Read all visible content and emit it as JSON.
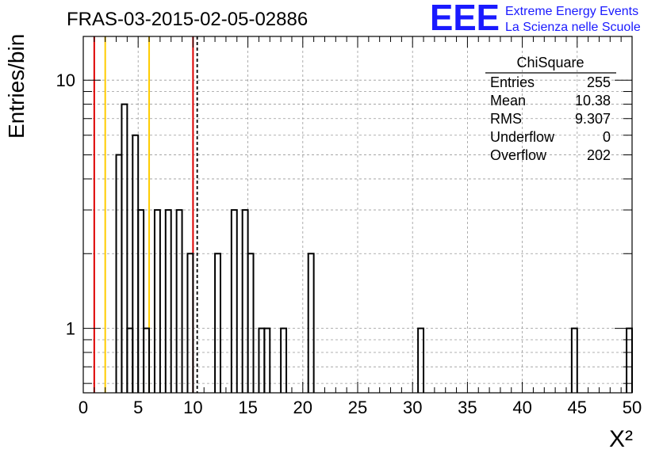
{
  "header": {
    "run_title": "FRAS-03-2015-02-05-02886",
    "logo_mark": "EEE",
    "logo_line1": "Extreme Energy Events",
    "logo_line2": "La Scienza nelle Scuole"
  },
  "colors": {
    "logo_blue": "#1a1aff",
    "red_line": "#dd0000",
    "yellow_line": "#ffcc00",
    "grid": "#999999",
    "histogram": "#000000"
  },
  "stats": {
    "title": "ChiSquare",
    "rows": [
      {
        "label": "Entries",
        "value": "255"
      },
      {
        "label": "Mean",
        "value": "10.38"
      },
      {
        "label": "RMS",
        "value": "9.307"
      },
      {
        "label": "Underflow",
        "value": "0"
      },
      {
        "label": "Overflow",
        "value": "202"
      }
    ]
  },
  "chart_data": {
    "type": "bar",
    "style": "step-histogram",
    "xlabel": "X²",
    "ylabel": "Entries/bin",
    "xlim": [
      0,
      50
    ],
    "ylim": [
      0.55,
      15
    ],
    "ylog": true,
    "grid": true,
    "bin_width": 0.5,
    "x_ticks": [
      "0",
      "5",
      "10",
      "15",
      "20",
      "25",
      "30",
      "35",
      "40",
      "45",
      "50"
    ],
    "y_ticks": [
      {
        "value": 1,
        "label": "1"
      },
      {
        "value": 10,
        "label": "10"
      }
    ],
    "bins": [
      {
        "x": 3.0,
        "count": 5
      },
      {
        "x": 3.5,
        "count": 8
      },
      {
        "x": 4.0,
        "count": 1
      },
      {
        "x": 4.5,
        "count": 6
      },
      {
        "x": 5.0,
        "count": 3
      },
      {
        "x": 5.5,
        "count": 1
      },
      {
        "x": 6.0,
        "count": 0
      },
      {
        "x": 6.5,
        "count": 3
      },
      {
        "x": 7.0,
        "count": 0
      },
      {
        "x": 7.5,
        "count": 3
      },
      {
        "x": 8.0,
        "count": 0
      },
      {
        "x": 8.5,
        "count": 3
      },
      {
        "x": 9.0,
        "count": 0
      },
      {
        "x": 9.5,
        "count": 2
      },
      {
        "x": 12.0,
        "count": 2
      },
      {
        "x": 13.5,
        "count": 3
      },
      {
        "x": 14.0,
        "count": 0
      },
      {
        "x": 14.5,
        "count": 3
      },
      {
        "x": 15.0,
        "count": 2
      },
      {
        "x": 15.5,
        "count": 0
      },
      {
        "x": 16.0,
        "count": 1
      },
      {
        "x": 16.5,
        "count": 1
      },
      {
        "x": 18.0,
        "count": 1
      },
      {
        "x": 20.5,
        "count": 2
      },
      {
        "x": 30.5,
        "count": 1
      },
      {
        "x": 44.5,
        "count": 1
      },
      {
        "x": 49.5,
        "count": 1
      }
    ],
    "reference_lines": [
      {
        "x": 1,
        "color": "#dd0000",
        "style": "solid"
      },
      {
        "x": 2,
        "color": "#ffcc00",
        "style": "solid"
      },
      {
        "x": 6,
        "color": "#ffcc00",
        "style": "solid"
      },
      {
        "x": 10,
        "color": "#dd0000",
        "style": "solid"
      },
      {
        "x": 10.38,
        "color": "#000000",
        "style": "dashed"
      }
    ]
  }
}
